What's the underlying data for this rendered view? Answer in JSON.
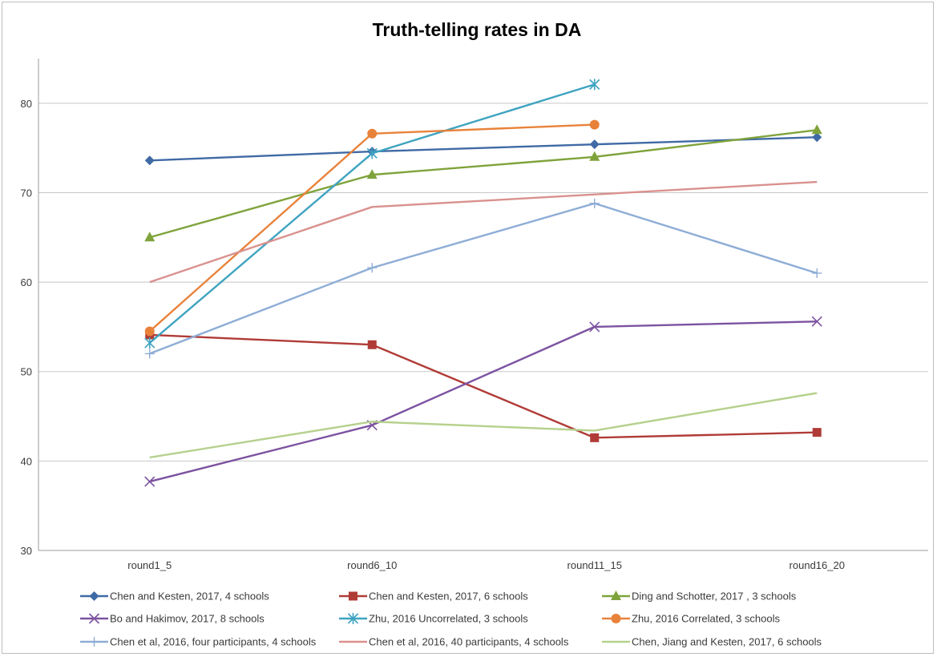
{
  "chart_data": {
    "type": "line",
    "title": "Truth-telling rates in DA",
    "xlabel": "",
    "ylabel": "",
    "categories": [
      "round1_5",
      "round6_10",
      "round11_15",
      "round16_20"
    ],
    "ylim": [
      30,
      85
    ],
    "yticks": [
      30,
      40,
      50,
      60,
      70,
      80
    ],
    "grid": "horizontal",
    "legend_position": "bottom",
    "series": [
      {
        "name": "Chen and Kesten, 2017, 4 schools",
        "values": [
          73.6,
          74.6,
          75.4,
          76.2
        ],
        "color": "#3f6aa5",
        "marker": "diamond"
      },
      {
        "name": "Chen and Kesten, 2017, 6 schools",
        "values": [
          54.1,
          53.0,
          42.6,
          43.2
        ],
        "color": "#b03b36",
        "marker": "square"
      },
      {
        "name": "Ding and Schotter, 2017 , 3 schools",
        "values": [
          65.0,
          72.0,
          74.0,
          77.0
        ],
        "color": "#7fa33b",
        "marker": "triangle"
      },
      {
        "name": "Bo and Hakimov, 2017, 8 schools",
        "values": [
          37.7,
          44.0,
          55.0,
          55.6
        ],
        "color": "#7c52a1",
        "marker": "x"
      },
      {
        "name": "Zhu, 2016 Uncorrelated, 3 schools",
        "values": [
          53.2,
          74.4,
          82.1,
          null
        ],
        "color": "#3ea3c0",
        "marker": "star"
      },
      {
        "name": "Zhu, 2016 Correlated, 3 schools",
        "values": [
          54.5,
          76.6,
          77.6,
          null
        ],
        "color": "#e8823a",
        "marker": "circle"
      },
      {
        "name": "Chen et al, 2016, four participants, 4 schools",
        "values": [
          52.0,
          61.6,
          68.8,
          61.0
        ],
        "color": "#8eadd6",
        "marker": "plus"
      },
      {
        "name": "Chen et al, 2016, 40 participants, 4 schools",
        "values": [
          60.0,
          68.4,
          69.8,
          71.2
        ],
        "color": "#d9918e",
        "marker": "none"
      },
      {
        "name": "Chen, Jiang and Kesten, 2017, 6 schools",
        "values": [
          40.4,
          44.4,
          43.4,
          47.6
        ],
        "color": "#b5d18d",
        "marker": "none"
      }
    ]
  }
}
